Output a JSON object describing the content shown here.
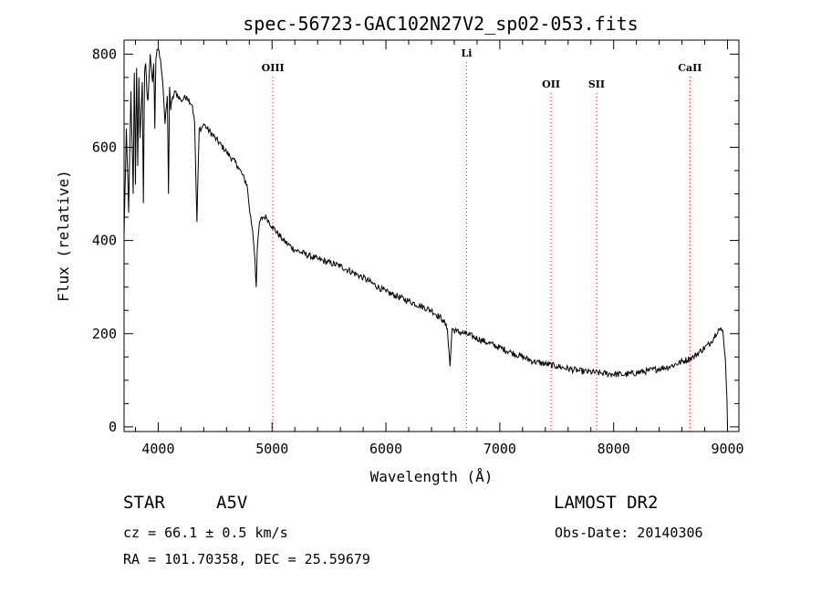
{
  "chart_data": {
    "type": "line",
    "title": "spec-56723-GAC102N27V2_sp02-053.fits",
    "xlabel": "Wavelength (Å)",
    "ylabel": "Flux (relative)",
    "xlim": [
      3700,
      9100
    ],
    "ylim": [
      -10,
      830
    ],
    "xticks": [
      4000,
      5000,
      6000,
      7000,
      8000,
      9000
    ],
    "yticks": [
      0,
      200,
      400,
      600,
      800
    ],
    "spectral_lines": [
      {
        "name": "OIII",
        "wavelength": 5007
      },
      {
        "name": "Li",
        "wavelength": 6708
      },
      {
        "name": "OII",
        "wavelength": 7450
      },
      {
        "name": "SII",
        "wavelength": 7850
      },
      {
        "name": "CaII",
        "wavelength": 8670
      }
    ],
    "series": [
      {
        "name": "spectrum",
        "x": [
          3700,
          3720,
          3740,
          3760,
          3780,
          3790,
          3800,
          3810,
          3820,
          3830,
          3840,
          3860,
          3870,
          3880,
          3890,
          3900,
          3910,
          3930,
          3950,
          3960,
          3970,
          3980,
          3990,
          4000,
          4020,
          4040,
          4060,
          4080,
          4090,
          4100,
          4110,
          4120,
          4150,
          4200,
          4250,
          4300,
          4320,
          4340,
          4360,
          4380,
          4400,
          4430,
          4500,
          4600,
          4700,
          4780,
          4800,
          4830,
          4850,
          4861,
          4870,
          4890,
          4920,
          4950,
          5000,
          5100,
          5200,
          5400,
          5600,
          5800,
          6000,
          6200,
          6400,
          6500,
          6540,
          6563,
          6580,
          6620,
          6700,
          6900,
          7100,
          7300,
          7500,
          7700,
          7900,
          8100,
          8300,
          8500,
          8700,
          8850,
          8920,
          8960,
          8980,
          8995,
          9000
        ],
        "y": [
          410,
          640,
          460,
          720,
          500,
          760,
          520,
          770,
          560,
          750,
          620,
          740,
          480,
          760,
          780,
          720,
          700,
          800,
          740,
          780,
          640,
          790,
          810,
          810,
          790,
          740,
          650,
          710,
          500,
          730,
          680,
          700,
          720,
          700,
          710,
          690,
          650,
          440,
          640,
          640,
          650,
          640,
          620,
          590,
          560,
          520,
          470,
          420,
          360,
          300,
          380,
          440,
          450,
          450,
          430,
          400,
          380,
          360,
          345,
          320,
          290,
          270,
          250,
          230,
          210,
          130,
          210,
          205,
          200,
          180,
          160,
          140,
          130,
          120,
          115,
          112,
          120,
          130,
          150,
          180,
          210,
          205,
          150,
          60,
          0
        ]
      }
    ]
  },
  "info": {
    "object_type": "STAR",
    "spectral_class": "A5V",
    "survey": "LAMOST DR2",
    "redshift": "cz = 66.1 ± 0.5 km/s",
    "obs_date": "Obs-Date: 20140306",
    "coords": "RA = 101.70358, DEC =  25.59679"
  },
  "colors": {
    "axis": "#000000",
    "spectrum": "#000000",
    "line_marker": "#ff0000"
  }
}
